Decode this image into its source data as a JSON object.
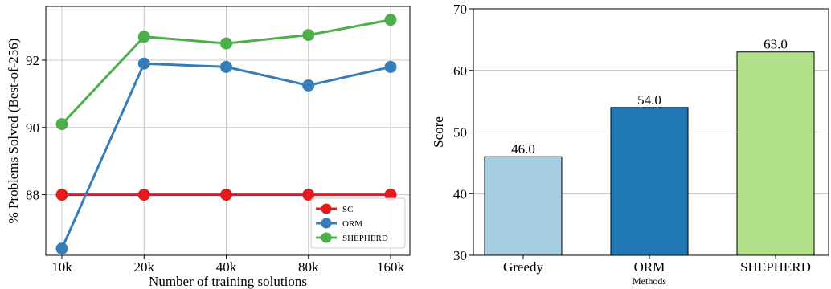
{
  "chart_data": [
    {
      "type": "line",
      "x": [
        "10k",
        "20k",
        "40k",
        "80k",
        "160k"
      ],
      "xlabel": "Number of training solutions",
      "ylabel": "% Problems Solved (Best-of-256)",
      "ylim": [
        86.2,
        93.6
      ],
      "yticks": [
        88,
        90,
        92
      ],
      "grid": true,
      "legend_position": "lower-right",
      "series": [
        {
          "name": "SC",
          "color": "#e41a1c",
          "values": [
            88.0,
            88.0,
            88.0,
            88.0,
            88.0
          ]
        },
        {
          "name": "ORM",
          "color": "#377eb8",
          "values": [
            86.4,
            91.9,
            91.8,
            91.25,
            91.8
          ]
        },
        {
          "name": "SHEPHERD",
          "color": "#4daf4a",
          "values": [
            90.1,
            92.7,
            92.5,
            92.75,
            93.2
          ]
        }
      ]
    },
    {
      "type": "bar",
      "categories": [
        "Greedy",
        "ORM",
        "SHEPHERD"
      ],
      "values": [
        46.0,
        54.0,
        63.0
      ],
      "value_labels": [
        "46.0",
        "54.0",
        "63.0"
      ],
      "colors": [
        "#a6cee3",
        "#1f78b4",
        "#b2df8a"
      ],
      "xlabel": "Methods",
      "ylabel": "Score",
      "ylim": [
        30,
        70
      ],
      "yticks": [
        "30",
        "40",
        "50",
        "60",
        "70"
      ],
      "grid": true
    }
  ]
}
